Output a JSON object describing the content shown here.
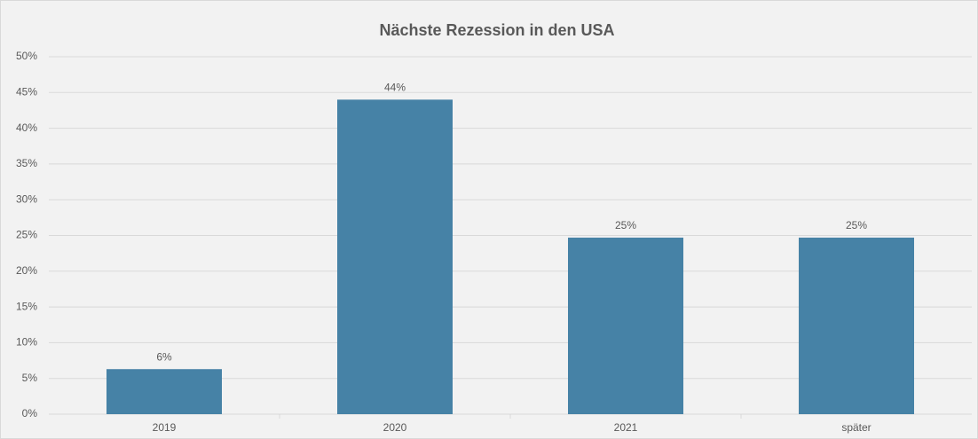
{
  "chart_data": {
    "type": "bar",
    "title": "Nächste Rezession in den USA",
    "categories": [
      "2019",
      "2020",
      "2021",
      "später"
    ],
    "values": [
      6.3,
      44,
      24.7,
      24.7
    ],
    "value_labels": [
      "6%",
      "44%",
      "25%",
      "25%"
    ],
    "color": "#4682a6",
    "ylim": [
      0,
      50
    ],
    "yticks": [
      {
        "value": 0,
        "label": "0%"
      },
      {
        "value": 5,
        "label": "5%"
      },
      {
        "value": 10,
        "label": "10%"
      },
      {
        "value": 15,
        "label": "15%"
      },
      {
        "value": 20,
        "label": "20%"
      },
      {
        "value": 25,
        "label": "25%"
      },
      {
        "value": 30,
        "label": "30%"
      },
      {
        "value": 35,
        "label": "35%"
      },
      {
        "value": 40,
        "label": "40%"
      },
      {
        "value": 45,
        "label": "45%"
      },
      {
        "value": 50,
        "label": "50%"
      }
    ],
    "grid": true
  }
}
